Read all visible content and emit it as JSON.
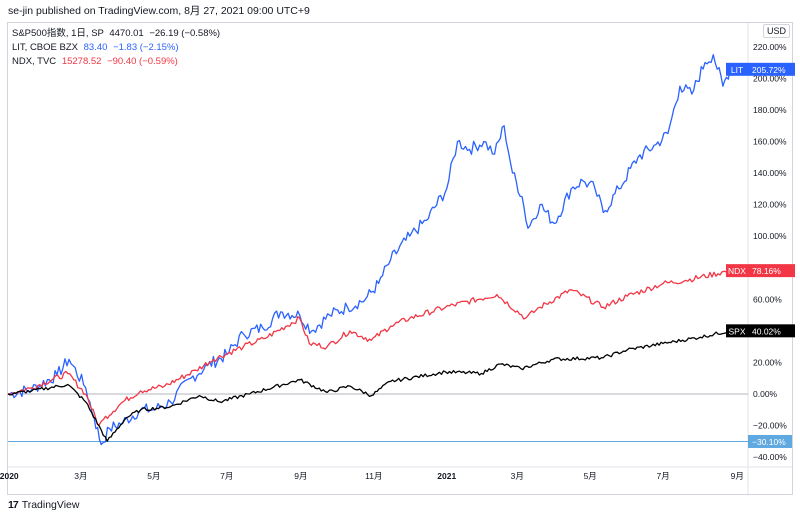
{
  "header": {
    "published": "se-jin published on TradingView.com, 8月 27, 2021 09:00 UTC+9"
  },
  "legend": [
    {
      "name": "S&P500指数, 1日, SP",
      "value": "4470.01",
      "change": "−26.19 (−0.58%)",
      "color": "#131722"
    },
    {
      "name": "LIT, CBOE BZX",
      "value": "83.40",
      "change": "−1.83 (−2.15%)",
      "color": "#2962ff"
    },
    {
      "name": "NDX, TVC",
      "value": "15278.52",
      "change": "−90.40 (−0.59%)",
      "color": "#f23645"
    }
  ],
  "currency": "USD",
  "footer": {
    "logo_mark": "17",
    "logo_text": "TradingView"
  },
  "colors": {
    "spx": "#000000",
    "lit": "#2962ff",
    "ndx": "#f23645",
    "hline": "#5fa8e0",
    "zero": "#b2b5be"
  },
  "chart_data": {
    "type": "line",
    "y_unit": "%",
    "ylim": [
      -45,
      230
    ],
    "y_ticks": [
      "220.00%",
      "200.00%",
      "180.00%",
      "160.00%",
      "140.00%",
      "120.00%",
      "100.00%",
      "60.00%",
      "20.00%",
      "0.00%",
      "−20.00%",
      "−40.00%"
    ],
    "y_tick_values": [
      220,
      200,
      180,
      160,
      140,
      120,
      100,
      60,
      20,
      0,
      -20,
      -40
    ],
    "x_ticks": [
      "2020",
      "3月",
      "5月",
      "7月",
      "9月",
      "11月",
      "2021",
      "3月",
      "5月",
      "7月",
      "9月"
    ],
    "x_tick_dates": [
      "2020-01-01",
      "2020-03-01",
      "2020-05-01",
      "2020-07-01",
      "2020-09-01",
      "2020-11-01",
      "2021-01-01",
      "2021-03-01",
      "2021-05-01",
      "2021-07-01",
      "2021-09-01"
    ],
    "xlim": [
      "2019-12-31",
      "2021-09-10"
    ],
    "series": [
      {
        "name": "LIT",
        "key": "lit",
        "last_label": "205.72%",
        "points": [
          [
            "2019-12-31",
            0
          ],
          [
            "2020-01-20",
            3
          ],
          [
            "2020-02-10",
            12
          ],
          [
            "2020-02-20",
            22
          ],
          [
            "2020-03-05",
            4
          ],
          [
            "2020-03-12",
            -15
          ],
          [
            "2020-03-18",
            -32
          ],
          [
            "2020-03-25",
            -22
          ],
          [
            "2020-04-05",
            -18
          ],
          [
            "2020-04-20",
            -10
          ],
          [
            "2020-05-01",
            -10
          ],
          [
            "2020-05-15",
            -5
          ],
          [
            "2020-06-01",
            10
          ],
          [
            "2020-06-15",
            18
          ],
          [
            "2020-07-01",
            25
          ],
          [
            "2020-07-15",
            38
          ],
          [
            "2020-07-31",
            42
          ],
          [
            "2020-08-15",
            52
          ],
          [
            "2020-08-31",
            50
          ],
          [
            "2020-09-10",
            40
          ],
          [
            "2020-09-25",
            50
          ],
          [
            "2020-10-10",
            55
          ],
          [
            "2020-10-25",
            60
          ],
          [
            "2020-11-05",
            70
          ],
          [
            "2020-11-15",
            85
          ],
          [
            "2020-12-01",
            100
          ],
          [
            "2020-12-15",
            110
          ],
          [
            "2021-01-01",
            130
          ],
          [
            "2021-01-10",
            160
          ],
          [
            "2021-01-20",
            155
          ],
          [
            "2021-02-01",
            160
          ],
          [
            "2021-02-10",
            152
          ],
          [
            "2021-02-18",
            170
          ],
          [
            "2021-02-25",
            140
          ],
          [
            "2021-03-05",
            125
          ],
          [
            "2021-03-10",
            105
          ],
          [
            "2021-03-20",
            120
          ],
          [
            "2021-04-01",
            108
          ],
          [
            "2021-04-15",
            130
          ],
          [
            "2021-04-25",
            135
          ],
          [
            "2021-05-05",
            130
          ],
          [
            "2021-05-12",
            115
          ],
          [
            "2021-05-25",
            130
          ],
          [
            "2021-06-10",
            150
          ],
          [
            "2021-06-25",
            158
          ],
          [
            "2021-07-05",
            165
          ],
          [
            "2021-07-15",
            195
          ],
          [
            "2021-07-25",
            190
          ],
          [
            "2021-08-05",
            210
          ],
          [
            "2021-08-12",
            215
          ],
          [
            "2021-08-20",
            195
          ],
          [
            "2021-08-26",
            205.72
          ]
        ]
      },
      {
        "name": "NDX",
        "key": "ndx",
        "last_label": "78.16%",
        "points": [
          [
            "2019-12-31",
            0
          ],
          [
            "2020-01-20",
            4
          ],
          [
            "2020-02-19",
            13
          ],
          [
            "2020-03-05",
            0
          ],
          [
            "2020-03-16",
            -20
          ],
          [
            "2020-03-20",
            -16
          ],
          [
            "2020-04-05",
            -5
          ],
          [
            "2020-04-20",
            2
          ],
          [
            "2020-05-10",
            5
          ],
          [
            "2020-06-05",
            15
          ],
          [
            "2020-06-20",
            22
          ],
          [
            "2020-07-15",
            30
          ],
          [
            "2020-08-01",
            35
          ],
          [
            "2020-08-31",
            48
          ],
          [
            "2020-09-08",
            32
          ],
          [
            "2020-09-23",
            30
          ],
          [
            "2020-10-12",
            40
          ],
          [
            "2020-10-30",
            34
          ],
          [
            "2020-11-15",
            43
          ],
          [
            "2020-12-01",
            48
          ],
          [
            "2020-12-31",
            55
          ],
          [
            "2021-02-12",
            63
          ],
          [
            "2021-03-08",
            48
          ],
          [
            "2021-03-20",
            55
          ],
          [
            "2021-04-15",
            66
          ],
          [
            "2021-05-12",
            55
          ],
          [
            "2021-06-01",
            62
          ],
          [
            "2021-07-01",
            70
          ],
          [
            "2021-07-20",
            72
          ],
          [
            "2021-08-26",
            78.16
          ]
        ]
      },
      {
        "name": "SPX",
        "key": "spx",
        "last_label": "40.02%",
        "points": [
          [
            "2019-12-31",
            0
          ],
          [
            "2020-01-20",
            2
          ],
          [
            "2020-02-19",
            6
          ],
          [
            "2020-03-05",
            -5
          ],
          [
            "2020-03-23",
            -30
          ],
          [
            "2020-04-08",
            -15
          ],
          [
            "2020-04-20",
            -10
          ],
          [
            "2020-05-15",
            -8
          ],
          [
            "2020-06-08",
            -1
          ],
          [
            "2020-06-25",
            -5
          ],
          [
            "2020-07-20",
            0
          ],
          [
            "2020-08-31",
            9
          ],
          [
            "2020-09-23",
            1
          ],
          [
            "2020-10-12",
            5
          ],
          [
            "2020-10-30",
            -1
          ],
          [
            "2020-11-15",
            8
          ],
          [
            "2020-12-31",
            14
          ],
          [
            "2021-01-30",
            13
          ],
          [
            "2021-02-15",
            19
          ],
          [
            "2021-03-04",
            16
          ],
          [
            "2021-03-31",
            22
          ],
          [
            "2021-05-12",
            23
          ],
          [
            "2021-06-01",
            28
          ],
          [
            "2021-07-01",
            32
          ],
          [
            "2021-08-01",
            36
          ],
          [
            "2021-08-26",
            40.02
          ]
        ]
      }
    ],
    "hline": {
      "value": -30.1,
      "label": "−30.10%"
    }
  }
}
